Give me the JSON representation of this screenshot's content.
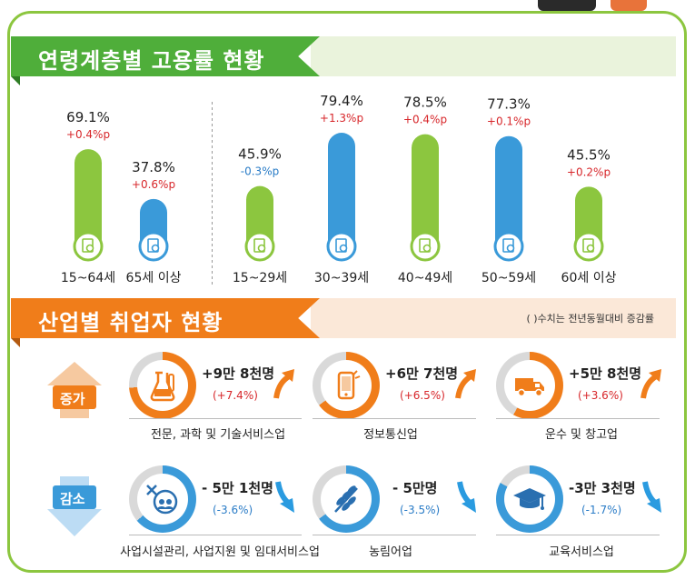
{
  "colors": {
    "green": "#8cc63f",
    "blue": "#3a9ad9",
    "orange": "#f07d1a",
    "red": "#d7262a",
    "down_blue": "#2a7cc7",
    "dark_green": "#3fa535"
  },
  "section1": {
    "title": "연령계층별 고용률 현황"
  },
  "chart_data": {
    "type": "bar",
    "categories": [
      "15~64세",
      "65세 이상",
      "15~29세",
      "30~39세",
      "40~49세",
      "50~59세",
      "60세 이상"
    ],
    "values": [
      69.1,
      37.8,
      45.9,
      79.4,
      78.5,
      77.3,
      45.5
    ],
    "value_labels": [
      "69.1%",
      "37.8%",
      "45.9%",
      "79.4%",
      "78.5%",
      "77.3%",
      "45.5%"
    ],
    "changes": [
      "+0.4%p",
      "+0.6%p",
      "-0.3%p",
      "+1.3%p",
      "+0.4%p",
      "+0.1%p",
      "+0.2%p"
    ],
    "change_direction": [
      "up",
      "up",
      "down",
      "up",
      "up",
      "up",
      "up"
    ],
    "bar_colors": [
      "#8cc63f",
      "#3a9ad9",
      "#8cc63f",
      "#3a9ad9",
      "#8cc63f",
      "#3a9ad9",
      "#8cc63f"
    ],
    "icon": "document-search-icon",
    "divider_after_index": 1,
    "ylim": [
      0,
      100
    ],
    "grid": false
  },
  "section2": {
    "title": "산업별 취업자 현황",
    "note": "( )수치는 전년동월대비 증감률",
    "increase_label": "증가",
    "decrease_label": "감소",
    "increase": [
      {
        "amount": "+9만 8천명",
        "rate": "(+7.4%)",
        "name": "전문, 과학 및 기술서비스업",
        "icon": "lab-flask-icon",
        "ring_share": 0.74
      },
      {
        "amount": "+6만 7천명",
        "rate": "(+6.5%)",
        "name": "정보통신업",
        "icon": "smartphone-icon",
        "ring_share": 0.65
      },
      {
        "amount": "+5만 8천명",
        "rate": "(+3.6%)",
        "name": "운수 및 창고업",
        "icon": "truck-icon",
        "ring_share": 0.58
      }
    ],
    "decrease": [
      {
        "amount": "- 5만 1천명",
        "rate": "(-3.6%)",
        "name": "사업시설관리, 사업지원 및 임대서비스업",
        "icon": "people-tools-icon",
        "ring_share": 0.64
      },
      {
        "amount": "- 5만명",
        "rate": "(-3.5%)",
        "name": "농림어업",
        "icon": "wheat-icon",
        "ring_share": 0.65
      },
      {
        "amount": "-3만 3천명",
        "rate": "(-1.7%)",
        "name": "교육서비스업",
        "icon": "graduation-cap-icon",
        "ring_share": 0.83
      }
    ]
  }
}
